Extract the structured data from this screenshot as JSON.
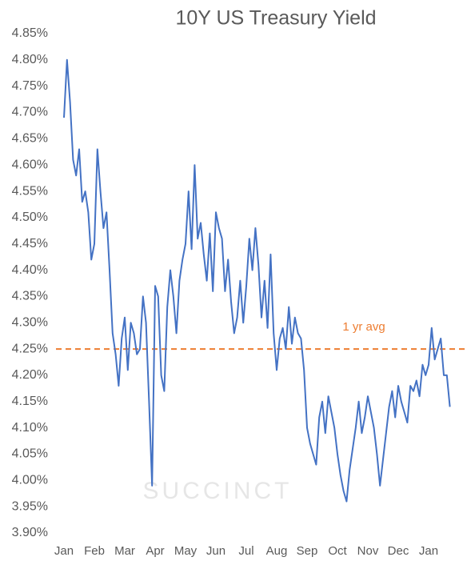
{
  "chart_data": {
    "type": "line",
    "title": "10Y US Treasury Yield",
    "watermark": "SUCCINCT",
    "categories": [
      "Jan",
      null,
      null,
      null,
      null,
      null,
      null,
      null,
      null,
      null,
      "Feb",
      null,
      null,
      null,
      null,
      null,
      null,
      null,
      null,
      null,
      "Mar",
      null,
      null,
      null,
      null,
      null,
      null,
      null,
      null,
      null,
      "Apr",
      null,
      null,
      null,
      null,
      null,
      null,
      null,
      null,
      null,
      "May",
      null,
      null,
      null,
      null,
      null,
      null,
      null,
      null,
      null,
      "Jun",
      null,
      null,
      null,
      null,
      null,
      null,
      null,
      null,
      null,
      "Jul",
      null,
      null,
      null,
      null,
      null,
      null,
      null,
      null,
      null,
      "Aug",
      null,
      null,
      null,
      null,
      null,
      null,
      null,
      null,
      null,
      "Sep",
      null,
      null,
      null,
      null,
      null,
      null,
      null,
      null,
      null,
      "Oct",
      null,
      null,
      null,
      null,
      null,
      null,
      null,
      null,
      null,
      "Nov",
      null,
      null,
      null,
      null,
      null,
      null,
      null,
      null,
      null,
      "Dec",
      null,
      null,
      null,
      null,
      null,
      null,
      null,
      null,
      null,
      "Jan",
      null,
      null,
      null,
      null,
      null,
      null,
      null
    ],
    "series": [
      {
        "name": "10Y US Treasury Yield",
        "color": "#4472c4",
        "values": [
          4.69,
          4.8,
          4.72,
          4.61,
          4.58,
          4.63,
          4.53,
          4.55,
          4.51,
          4.42,
          4.45,
          4.63,
          4.55,
          4.48,
          4.51,
          4.4,
          4.28,
          4.24,
          4.18,
          4.27,
          4.31,
          4.21,
          4.3,
          4.28,
          4.24,
          4.25,
          4.35,
          4.3,
          4.15,
          3.99,
          4.37,
          4.35,
          4.2,
          4.17,
          4.33,
          4.4,
          4.35,
          4.28,
          4.38,
          4.42,
          4.45,
          4.55,
          4.44,
          4.6,
          4.46,
          4.49,
          4.43,
          4.38,
          4.47,
          4.36,
          4.51,
          4.48,
          4.46,
          4.36,
          4.42,
          4.34,
          4.28,
          4.31,
          4.38,
          4.3,
          4.37,
          4.46,
          4.4,
          4.48,
          4.41,
          4.31,
          4.38,
          4.29,
          4.43,
          4.28,
          4.21,
          4.27,
          4.29,
          4.25,
          4.33,
          4.26,
          4.31,
          4.28,
          4.27,
          4.21,
          4.1,
          4.07,
          4.05,
          4.03,
          4.12,
          4.15,
          4.09,
          4.16,
          4.13,
          4.1,
          4.05,
          4.01,
          3.98,
          3.96,
          4.02,
          4.06,
          4.1,
          4.15,
          4.09,
          4.12,
          4.16,
          4.13,
          4.1,
          4.05,
          3.99,
          4.04,
          4.09,
          4.14,
          4.17,
          4.12,
          4.18,
          4.15,
          4.13,
          4.11,
          4.18,
          4.17,
          4.19,
          4.16,
          4.22,
          4.2,
          4.22,
          4.29,
          4.23,
          4.25,
          4.27,
          4.2,
          4.2,
          4.14
        ]
      }
    ],
    "reference_line": {
      "value": 4.25,
      "label": "1 yr avg",
      "color": "#ed7d31"
    },
    "ylim": [
      3.9,
      4.85
    ],
    "yticks": [
      {
        "value": 3.9,
        "label": "3.90%"
      },
      {
        "value": 3.95,
        "label": "3.95%"
      },
      {
        "value": 4.0,
        "label": "4.00%"
      },
      {
        "value": 4.05,
        "label": "4.05%"
      },
      {
        "value": 4.1,
        "label": "4.10%"
      },
      {
        "value": 4.15,
        "label": "4.15%"
      },
      {
        "value": 4.2,
        "label": "4.20%"
      },
      {
        "value": 4.25,
        "label": "4.25%"
      },
      {
        "value": 4.3,
        "label": "4.30%"
      },
      {
        "value": 4.35,
        "label": "4.35%"
      },
      {
        "value": 4.4,
        "label": "4.40%"
      },
      {
        "value": 4.45,
        "label": "4.45%"
      },
      {
        "value": 4.5,
        "label": "4.50%"
      },
      {
        "value": 4.55,
        "label": "4.55%"
      },
      {
        "value": 4.6,
        "label": "4.60%"
      },
      {
        "value": 4.65,
        "label": "4.65%"
      },
      {
        "value": 4.7,
        "label": "4.70%"
      },
      {
        "value": 4.75,
        "label": "4.75%"
      },
      {
        "value": 4.8,
        "label": "4.80%"
      },
      {
        "value": 4.85,
        "label": "4.85%"
      }
    ]
  }
}
